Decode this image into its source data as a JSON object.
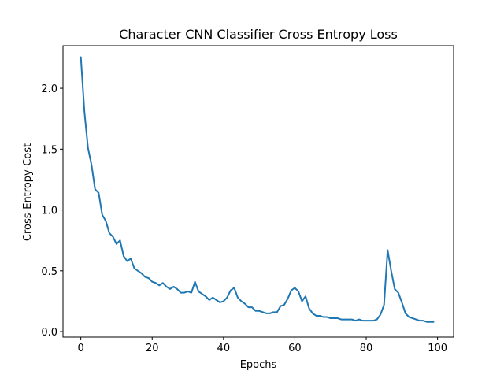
{
  "chart_data": {
    "type": "line",
    "title": "Character CNN Classifier Cross Entropy Loss",
    "xlabel": "Epochs",
    "ylabel": "Cross-Entropy-Cost",
    "xlim": [
      -5,
      104.5
    ],
    "ylim": [
      -0.045,
      2.35
    ],
    "xticks": [
      0,
      20,
      40,
      60,
      80,
      100
    ],
    "yticks": [
      0.0,
      0.5,
      1.0,
      1.5,
      2.0
    ],
    "xtick_labels": [
      "0",
      "20",
      "40",
      "60",
      "80",
      "100"
    ],
    "ytick_labels": [
      "0.0",
      "0.5",
      "1.0",
      "1.5",
      "2.0"
    ],
    "grid": false,
    "legend": false,
    "series": [
      {
        "color": "#1f77b4",
        "x": [
          0,
          1,
          2,
          3,
          4,
          5,
          6,
          7,
          8,
          9,
          10,
          11,
          12,
          13,
          14,
          15,
          16,
          17,
          18,
          19,
          20,
          21,
          22,
          23,
          24,
          25,
          26,
          27,
          28,
          29,
          30,
          31,
          32,
          33,
          34,
          35,
          36,
          37,
          38,
          39,
          40,
          41,
          42,
          43,
          44,
          45,
          46,
          47,
          48,
          49,
          50,
          51,
          52,
          53,
          54,
          55,
          56,
          57,
          58,
          59,
          60,
          61,
          62,
          63,
          64,
          65,
          66,
          67,
          68,
          69,
          70,
          71,
          72,
          73,
          74,
          75,
          76,
          77,
          78,
          79,
          80,
          81,
          82,
          83,
          84,
          85,
          86,
          87,
          88,
          89,
          90,
          91,
          92,
          93,
          94,
          95,
          96,
          97,
          98,
          99
        ],
        "values": [
          2.26,
          1.81,
          1.51,
          1.37,
          1.17,
          1.14,
          0.96,
          0.91,
          0.81,
          0.78,
          0.72,
          0.75,
          0.62,
          0.58,
          0.6,
          0.52,
          0.5,
          0.48,
          0.45,
          0.44,
          0.41,
          0.4,
          0.38,
          0.4,
          0.37,
          0.35,
          0.37,
          0.35,
          0.32,
          0.32,
          0.33,
          0.32,
          0.41,
          0.33,
          0.31,
          0.29,
          0.26,
          0.28,
          0.26,
          0.24,
          0.25,
          0.28,
          0.34,
          0.36,
          0.28,
          0.25,
          0.23,
          0.2,
          0.2,
          0.17,
          0.17,
          0.16,
          0.15,
          0.15,
          0.16,
          0.16,
          0.21,
          0.22,
          0.27,
          0.34,
          0.36,
          0.33,
          0.25,
          0.29,
          0.19,
          0.15,
          0.13,
          0.13,
          0.12,
          0.12,
          0.11,
          0.11,
          0.11,
          0.1,
          0.1,
          0.1,
          0.1,
          0.09,
          0.1,
          0.09,
          0.09,
          0.09,
          0.09,
          0.1,
          0.14,
          0.22,
          0.67,
          0.5,
          0.35,
          0.32,
          0.24,
          0.15,
          0.12,
          0.11,
          0.1,
          0.09,
          0.09,
          0.08,
          0.08,
          0.08
        ]
      }
    ]
  }
}
